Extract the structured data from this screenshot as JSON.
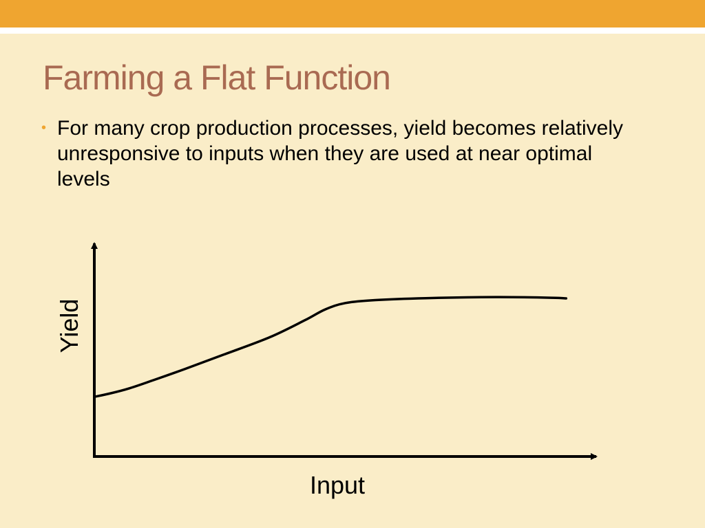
{
  "slide": {
    "title": "Farming a Flat Function",
    "bullets": [
      "For many crop production processes, yield becomes relatively unresponsive to inputs when they are used at near optimal levels"
    ]
  },
  "colors": {
    "background": "#FAEDC8",
    "band": "#EFA530",
    "title": "#A96A52",
    "bullet": "#EFA530",
    "axis": "#000000",
    "curve": "#000000"
  },
  "chart_data": {
    "type": "line",
    "xlabel": "Input",
    "ylabel": "Yield",
    "grid": false,
    "legend": "none",
    "xlim": [
      0,
      100
    ],
    "ylim": [
      0,
      100
    ],
    "series": [
      {
        "x": [
          0,
          3,
          7,
          12,
          18,
          26,
          35,
          42,
          46,
          50,
          56,
          66,
          80,
          91,
          94
        ],
        "values": [
          28,
          29.5,
          32,
          36,
          41,
          48,
          56,
          64,
          69,
          72,
          73.4,
          74.3,
          74.8,
          74.5,
          74.2
        ]
      }
    ]
  }
}
